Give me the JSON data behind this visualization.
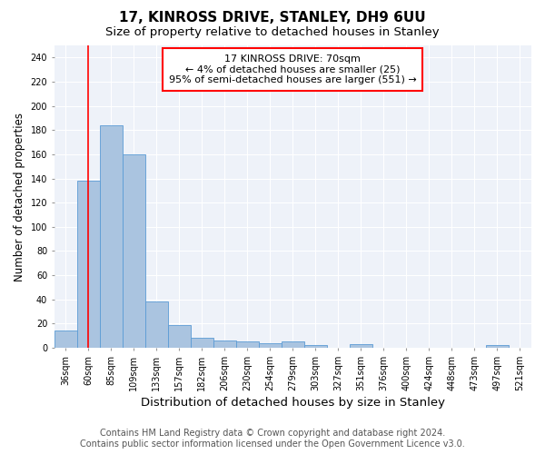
{
  "title1": "17, KINROSS DRIVE, STANLEY, DH9 6UU",
  "title2": "Size of property relative to detached houses in Stanley",
  "xlabel": "Distribution of detached houses by size in Stanley",
  "ylabel": "Number of detached properties",
  "categories": [
    "36sqm",
    "60sqm",
    "85sqm",
    "109sqm",
    "133sqm",
    "157sqm",
    "182sqm",
    "206sqm",
    "230sqm",
    "254sqm",
    "279sqm",
    "303sqm",
    "327sqm",
    "351sqm",
    "376sqm",
    "400sqm",
    "424sqm",
    "448sqm",
    "473sqm",
    "497sqm",
    "521sqm"
  ],
  "values": [
    14,
    138,
    184,
    160,
    38,
    19,
    8,
    6,
    5,
    4,
    5,
    2,
    0,
    3,
    0,
    0,
    0,
    0,
    0,
    2,
    0
  ],
  "bar_color": "#aac4e0",
  "bar_edge_color": "#5b9bd5",
  "red_line_x": 1.0,
  "annotation_text": "17 KINROSS DRIVE: 70sqm\n← 4% of detached houses are smaller (25)\n95% of semi-detached houses are larger (551) →",
  "annotation_box_color": "white",
  "annotation_box_edge_color": "red",
  "ylim": [
    0,
    250
  ],
  "yticks": [
    0,
    20,
    40,
    60,
    80,
    100,
    120,
    140,
    160,
    180,
    200,
    220,
    240
  ],
  "footer_line1": "Contains HM Land Registry data © Crown copyright and database right 2024.",
  "footer_line2": "Contains public sector information licensed under the Open Government Licence v3.0.",
  "background_color": "#eef2f9",
  "grid_color": "white",
  "title1_fontsize": 11,
  "title2_fontsize": 9.5,
  "xlabel_fontsize": 9.5,
  "ylabel_fontsize": 8.5,
  "tick_fontsize": 7,
  "annotation_fontsize": 8,
  "footer_fontsize": 7
}
